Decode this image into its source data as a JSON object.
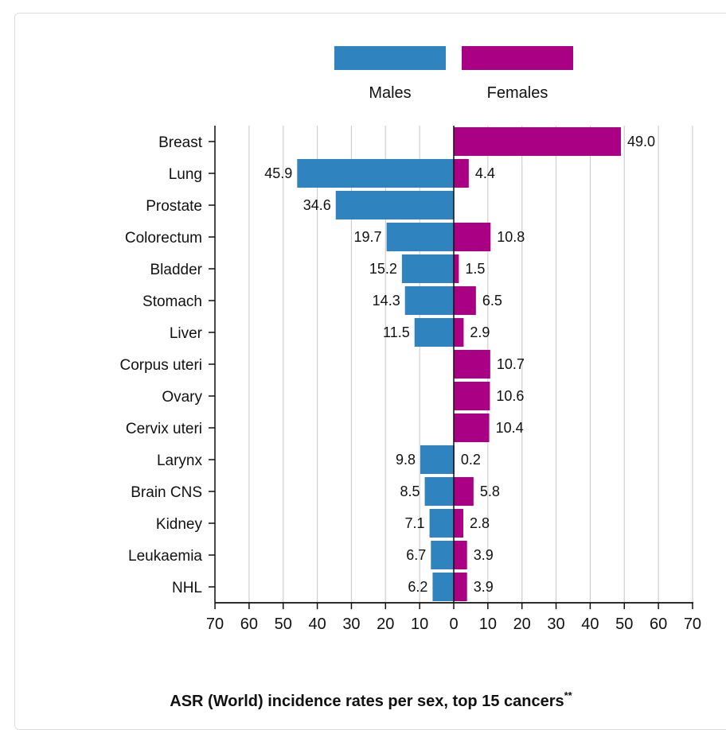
{
  "chart_data": {
    "type": "bar",
    "orientation": "horizontal",
    "layout": "butterfly",
    "title": "ASR (World) incidence rates per sex, top 15 cancers",
    "title_superscript": "**",
    "categories": [
      "Breast",
      "Lung",
      "Prostate",
      "Colorectum",
      "Bladder",
      "Stomach",
      "Liver",
      "Corpus uteri",
      "Ovary",
      "Cervix uteri",
      "Larynx",
      "Brain CNS",
      "Kidney",
      "Leukaemia",
      "NHL"
    ],
    "series": [
      {
        "name": "Males",
        "side": "left",
        "color": "#2f83be",
        "values": [
          null,
          45.9,
          34.6,
          19.7,
          15.2,
          14.3,
          11.5,
          null,
          null,
          null,
          9.8,
          8.5,
          7.1,
          6.7,
          6.2
        ],
        "labels": [
          "",
          "45.9",
          "34.6",
          "19.7",
          "15.2",
          "14.3",
          "11.5",
          "",
          "",
          "",
          "9.8",
          "8.5",
          "7.1",
          "6.7",
          "6.2"
        ]
      },
      {
        "name": "Females",
        "side": "right",
        "color": "#aa0083",
        "values": [
          49.0,
          4.4,
          null,
          10.8,
          1.5,
          6.5,
          2.9,
          10.7,
          10.6,
          10.4,
          0.2,
          5.8,
          2.8,
          3.9,
          3.9
        ],
        "labels": [
          "49.0",
          "4.4",
          "",
          "10.8",
          "1.5",
          "6.5",
          "2.9",
          "10.7",
          "10.6",
          "10.4",
          "0.2",
          "5.8",
          "2.8",
          "3.9",
          "3.9"
        ]
      }
    ],
    "x_ticks": [
      "70",
      "60",
      "50",
      "40",
      "30",
      "20",
      "10",
      "0",
      "10",
      "20",
      "30",
      "40",
      "50",
      "60",
      "70"
    ],
    "xlim": [
      -70,
      70
    ],
    "grid": true,
    "legend_position": "top"
  }
}
